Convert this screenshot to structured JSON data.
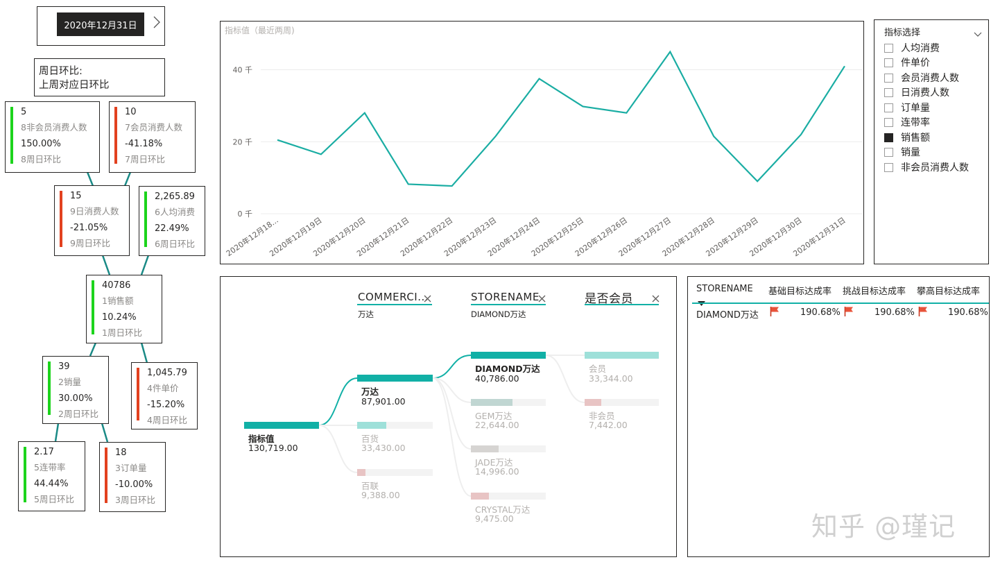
{
  "date_slicer": {
    "selected_date": "2020年12月31日",
    "next_icon": "chevron-right-icon"
  },
  "legend_note": {
    "line1": "周日环比:",
    "line2": "上周对应日环比"
  },
  "kpi_cards": [
    {
      "value": "5",
      "label": "8非会员消费人数",
      "pct": "150.00%",
      "pct_label": "8周日环比",
      "trend": "up"
    },
    {
      "value": "10",
      "label": "7会员消费人数",
      "pct": "-41.18%",
      "pct_label": "7周日环比",
      "trend": "down"
    },
    {
      "value": "15",
      "label": "9日消费人数",
      "pct": "-21.05%",
      "pct_label": "9周日环比",
      "trend": "down"
    },
    {
      "value": "2,265.89",
      "label": "6人均消费",
      "pct": "22.49%",
      "pct_label": "6周日环比",
      "trend": "up"
    },
    {
      "value": "40786",
      "label": "1销售额",
      "pct": "10.24%",
      "pct_label": "1周日环比",
      "trend": "up"
    },
    {
      "value": "39",
      "label": "2销量",
      "pct": "30.00%",
      "pct_label": "2周日环比",
      "trend": "up"
    },
    {
      "value": "1,045.79",
      "label": "4件单价",
      "pct": "-15.20%",
      "pct_label": "4周日环比",
      "trend": "down"
    },
    {
      "value": "2.17",
      "label": "5连带率",
      "pct": "44.44%",
      "pct_label": "5周日环比",
      "trend": "up"
    },
    {
      "value": "18",
      "label": "3订单量",
      "pct": "-10.00%",
      "pct_label": "3周日环比",
      "trend": "down"
    }
  ],
  "colors": {
    "up": "#1cd41c",
    "down": "#e2411f",
    "line": "#1aada3",
    "teal": "#11b0a6",
    "teal_light": "#9ee0d9",
    "pink": "#e8c4c4",
    "gray": "#d6d4d2",
    "flag": "#e8533a"
  },
  "line_chart": {
    "title": "指标值（最近两周)",
    "chart_data": {
      "type": "line",
      "title": "指标值（最近两周)",
      "categories": [
        "2020年12月18...",
        "2020年12月19日",
        "2020年12月20日",
        "2020年12月21日",
        "2020年12月22日",
        "2020年12月23日",
        "2020年12月24日",
        "2020年12月25日",
        "2020年12月26日",
        "2020年12月27日",
        "2020年12月28日",
        "2020年12月29日",
        "2020年12月30日",
        "2020年12月31日"
      ],
      "values": [
        20500,
        16500,
        28000,
        8200,
        7700,
        21500,
        37500,
        29800,
        28000,
        45000,
        21500,
        9000,
        22000,
        41000
      ],
      "ylim": [
        0,
        48000
      ],
      "ticks": [
        0,
        20000,
        40000
      ],
      "tick_labels": [
        "0 千",
        "20 千",
        "40 千"
      ],
      "grid": true
    }
  },
  "metric_slicer": {
    "title": "指标选择",
    "options": [
      {
        "label": "人均消费",
        "checked": false
      },
      {
        "label": "件单价",
        "checked": false
      },
      {
        "label": "会员消费人数",
        "checked": false
      },
      {
        "label": "日消费人数",
        "checked": false
      },
      {
        "label": "订单量",
        "checked": false
      },
      {
        "label": "连带率",
        "checked": false
      },
      {
        "label": "销售额",
        "checked": true
      },
      {
        "label": "销量",
        "checked": false
      },
      {
        "label": "非会员消费人数",
        "checked": false
      }
    ]
  },
  "decomposition": {
    "levels": [
      {
        "header": "COMMERCI...",
        "filter": "万达"
      },
      {
        "header": "STORENAME",
        "filter": "DIAMOND万达"
      },
      {
        "header": "是否会员",
        "filter": ""
      }
    ],
    "root": {
      "name": "指标值",
      "value": "130,719.00"
    },
    "level1": [
      {
        "name": "万达",
        "value": "87,901.00",
        "selected": true
      },
      {
        "name": "百货",
        "value": "33,430.00"
      },
      {
        "name": "百联",
        "value": "9,388.00"
      }
    ],
    "level2": [
      {
        "name": "DIAMOND万达",
        "value": "40,786.00",
        "selected": true
      },
      {
        "name": "GEM万达",
        "value": "22,644.00"
      },
      {
        "name": "JADE万达",
        "value": "14,996.00"
      },
      {
        "name": "CRYSTAL万达",
        "value": "9,475.00"
      }
    ],
    "level3": [
      {
        "name": "会员",
        "value": "33,344.00"
      },
      {
        "name": "非会员",
        "value": "7,442.00"
      }
    ]
  },
  "target_table": {
    "columns": [
      "STORENAME",
      "基础目标达成率",
      "挑战目标达成率",
      "攀高目标达成率"
    ],
    "sort_icon": "sort-desc-icon",
    "rows": [
      {
        "store": "DIAMOND万达",
        "base": "190.68%",
        "challenge": "190.68%",
        "stretch": "190.68%"
      }
    ]
  },
  "watermark": "知乎 @瑾记"
}
